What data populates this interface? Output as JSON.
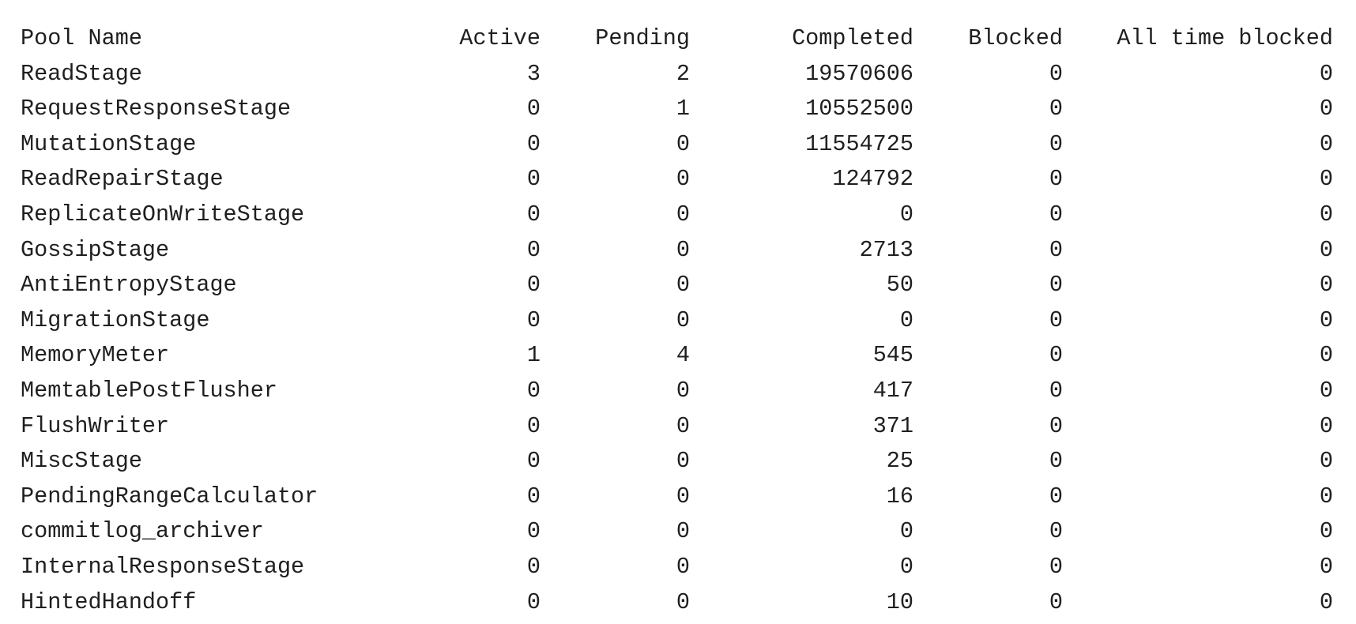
{
  "table": {
    "headers": {
      "pool_name": "Pool Name",
      "active": "Active",
      "pending": "Pending",
      "completed": "Completed",
      "blocked": "Blocked",
      "all_time_blocked": "All time blocked"
    },
    "rows": [
      {
        "pool_name": "ReadStage",
        "active": "3",
        "pending": "2",
        "completed": "19570606",
        "blocked": "0",
        "all_time_blocked": "0"
      },
      {
        "pool_name": "RequestResponseStage",
        "active": "0",
        "pending": "1",
        "completed": "10552500",
        "blocked": "0",
        "all_time_blocked": "0"
      },
      {
        "pool_name": "MutationStage",
        "active": "0",
        "pending": "0",
        "completed": "11554725",
        "blocked": "0",
        "all_time_blocked": "0"
      },
      {
        "pool_name": "ReadRepairStage",
        "active": "0",
        "pending": "0",
        "completed": "124792",
        "blocked": "0",
        "all_time_blocked": "0"
      },
      {
        "pool_name": "ReplicateOnWriteStage",
        "active": "0",
        "pending": "0",
        "completed": "0",
        "blocked": "0",
        "all_time_blocked": "0"
      },
      {
        "pool_name": "GossipStage",
        "active": "0",
        "pending": "0",
        "completed": "2713",
        "blocked": "0",
        "all_time_blocked": "0"
      },
      {
        "pool_name": "AntiEntropyStage",
        "active": "0",
        "pending": "0",
        "completed": "50",
        "blocked": "0",
        "all_time_blocked": "0"
      },
      {
        "pool_name": "MigrationStage",
        "active": "0",
        "pending": "0",
        "completed": "0",
        "blocked": "0",
        "all_time_blocked": "0"
      },
      {
        "pool_name": "MemoryMeter",
        "active": "1",
        "pending": "4",
        "completed": "545",
        "blocked": "0",
        "all_time_blocked": "0"
      },
      {
        "pool_name": "MemtablePostFlusher",
        "active": "0",
        "pending": "0",
        "completed": "417",
        "blocked": "0",
        "all_time_blocked": "0"
      },
      {
        "pool_name": "FlushWriter",
        "active": "0",
        "pending": "0",
        "completed": "371",
        "blocked": "0",
        "all_time_blocked": "0"
      },
      {
        "pool_name": "MiscStage",
        "active": "0",
        "pending": "0",
        "completed": "25",
        "blocked": "0",
        "all_time_blocked": "0"
      },
      {
        "pool_name": "PendingRangeCalculator",
        "active": "0",
        "pending": "0",
        "completed": "16",
        "blocked": "0",
        "all_time_blocked": "0"
      },
      {
        "pool_name": "commitlog_archiver",
        "active": "0",
        "pending": "0",
        "completed": "0",
        "blocked": "0",
        "all_time_blocked": "0"
      },
      {
        "pool_name": "InternalResponseStage",
        "active": "0",
        "pending": "0",
        "completed": "0",
        "blocked": "0",
        "all_time_blocked": "0"
      },
      {
        "pool_name": "HintedHandoff",
        "active": "0",
        "pending": "0",
        "completed": "10",
        "blocked": "0",
        "all_time_blocked": "0"
      }
    ]
  }
}
